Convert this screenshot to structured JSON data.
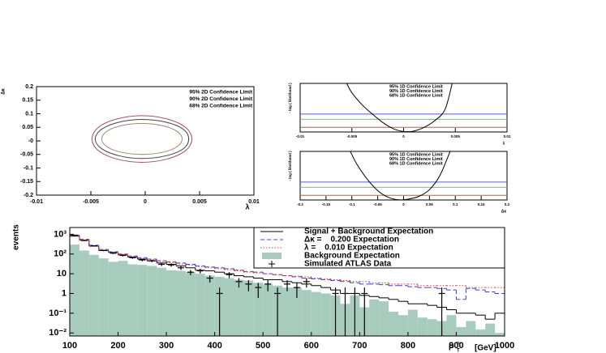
{
  "chart_data": [
    {
      "type": "contour",
      "xlabel": "λ",
      "ylabel": "Δκ",
      "xlim": [
        -0.01,
        0.01
      ],
      "ylim": [
        -0.2,
        0.2
      ],
      "xticks": [
        -0.01,
        -0.005,
        0,
        0.005,
        0.01
      ],
      "yticks": [
        -0.2,
        -0.15,
        -0.1,
        -0.05,
        {
          "value": 0,
          "label": "-0"
        },
        0.05,
        0.1,
        0.15,
        0.2
      ],
      "series": [
        {
          "name": "95% 2D Confidence Limit",
          "color": "#a85060",
          "x": [
            0.0043,
            0.0037,
            0.002,
            -0.0003,
            -0.0026,
            -0.0043,
            -0.0049,
            -0.0043,
            -0.0026,
            -0.0003,
            0.002,
            0.0037
          ],
          "values": [
            0.007,
            0.05,
            0.081,
            0.093,
            0.081,
            0.05,
            0.007,
            -0.036,
            -0.067,
            -0.079,
            -0.067,
            -0.036
          ]
        },
        {
          "name": "90% 2D Confidence Limit",
          "color": "#404058",
          "x": [
            0.004,
            0.0035,
            0.0019,
            -0.0003,
            -0.0024,
            -0.004,
            -0.0046,
            -0.004,
            -0.0024,
            -0.0003,
            0.0019,
            0.0035
          ],
          "values": [
            0.007,
            0.043,
            0.069,
            0.079,
            0.069,
            0.043,
            0.007,
            -0.029,
            -0.055,
            -0.065,
            -0.055,
            -0.029
          ]
        },
        {
          "name": "68% 2D Confidence Limit",
          "color": "#a08868",
          "x": [
            0.0034,
            0.0029,
            0.0016,
            -0.0003,
            -0.0022,
            -0.0035,
            -0.004,
            -0.0035,
            -0.0022,
            -0.0003,
            0.0016,
            0.0029
          ],
          "values": [
            0.007,
            0.036,
            0.056,
            0.064,
            0.056,
            0.036,
            0.007,
            -0.022,
            -0.042,
            -0.05,
            -0.042,
            -0.022
          ]
        }
      ]
    },
    {
      "type": "likelihood",
      "xlabel": "λ",
      "ylabel": "- log ( likelihood )",
      "xlim": [
        -0.01,
        0.01
      ],
      "ylim": [
        0,
        5.2
      ],
      "xticks": [
        -0.01,
        -0.005,
        0,
        0.005,
        0.01
      ],
      "curve": {
        "color": "#000000",
        "x": [
          -0.0055,
          -0.005,
          -0.004,
          -0.003,
          -0.002,
          -0.001,
          0,
          0.001,
          0.002,
          0.003,
          0.004,
          0.0047
        ],
        "values": [
          5.2,
          4.2,
          2.9,
          1.9,
          1.0,
          0.35,
          0.05,
          0.1,
          0.5,
          1.2,
          2.4,
          5.2
        ]
      },
      "levels": [
        {
          "name": "95% 1D Confidence Limit",
          "value": 1.92,
          "color": "#5a5ad8"
        },
        {
          "name": "90% 1D Confidence Limit",
          "value": 1.35,
          "color": "#60d060"
        },
        {
          "name": "68% 1D Confidence Limit",
          "value": 0.5,
          "color": "#d05050"
        }
      ]
    },
    {
      "type": "likelihood",
      "xlabel": "Δκ",
      "ylabel": "- log ( likelihood )",
      "xlim": [
        -0.2,
        0.2
      ],
      "ylim": [
        0,
        5.2
      ],
      "xticks": [
        -0.2,
        -0.15,
        -0.1,
        -0.05,
        0,
        0.05,
        0.1,
        0.15,
        0.2
      ],
      "curve": {
        "color": "#000000",
        "x": [
          -0.103,
          -0.09,
          -0.07,
          -0.05,
          -0.03,
          -0.01,
          0.01,
          0.03,
          0.05,
          0.07,
          0.09
        ],
        "values": [
          5.2,
          3.8,
          2.2,
          1.0,
          0.3,
          0.02,
          0.1,
          0.4,
          1.1,
          2.6,
          5.2
        ]
      },
      "levels": [
        {
          "name": "95% 1D Confidence Limit",
          "value": 1.92,
          "color": "#5a5ad8"
        },
        {
          "name": "90% 1D Confidence Limit",
          "value": 1.35,
          "color": "#60d060"
        },
        {
          "name": "68% 1D Confidence Limit",
          "value": 0.5,
          "color": "#d05050"
        }
      ]
    },
    {
      "type": "histogram",
      "ylabel": "events",
      "xlabel": {
        "base": "P",
        "sup": "γ",
        "sub": "T",
        "unit": "[GeV]"
      },
      "xlim": [
        100,
        1000
      ],
      "ylim": [
        0.007,
        2200
      ],
      "log_y": true,
      "xticks": [
        100,
        200,
        300,
        400,
        500,
        600,
        700,
        800,
        900,
        1000
      ],
      "yticks": [
        {
          "value": 0.01,
          "label": "10⁻²"
        },
        {
          "value": 0.1,
          "label": "10⁻¹"
        },
        1,
        10,
        {
          "value": 100,
          "label": "10²"
        },
        {
          "value": 1000,
          "label": "10³"
        }
      ],
      "bins": [
        100,
        120,
        140,
        160,
        180,
        200,
        220,
        240,
        260,
        280,
        300,
        320,
        340,
        360,
        380,
        400,
        420,
        440,
        460,
        480,
        500,
        520,
        540,
        560,
        580,
        600,
        620,
        640,
        660,
        680,
        700,
        720,
        740,
        760,
        780,
        800,
        820,
        840,
        860,
        880,
        900,
        920,
        940,
        960,
        980,
        1000
      ],
      "series": [
        {
          "name": "Signal + Background Expectation",
          "style": "solid",
          "color": "#000000",
          "values": [
            800,
            500,
            250,
            150,
            120,
            90,
            70,
            55,
            45,
            35,
            30,
            25,
            20,
            15,
            14,
            12,
            10,
            8,
            7,
            6,
            5,
            5,
            4,
            3.5,
            3,
            2.5,
            2,
            1.5,
            1,
            1,
            0.8,
            0.7,
            0.6,
            0.5,
            0.4,
            0.3,
            0.3,
            0.25,
            0.2,
            0.15,
            0.1,
            0.1,
            0.08,
            0.05,
            0.1
          ]
        },
        {
          "name": "Δκ =    0.200 Expectation",
          "style": "dashed",
          "color": "#4040d0",
          "values": [
            900,
            550,
            280,
            170,
            130,
            100,
            80,
            65,
            55,
            45,
            40,
            35,
            30,
            25,
            22,
            20,
            18,
            15,
            13,
            12,
            10,
            9,
            8,
            7,
            6,
            5.5,
            5,
            4.5,
            4,
            3.5,
            3,
            3,
            2.8,
            2.5,
            2.5,
            2.2,
            2,
            2,
            1.8,
            1.5,
            0.5,
            1.8,
            1.5,
            1.2,
            1
          ]
        },
        {
          "name": "λ =    0.010 Expectation",
          "style": "dotted",
          "color": "#e04040",
          "values": [
            850,
            520,
            260,
            160,
            125,
            95,
            75,
            60,
            50,
            42,
            36,
            31,
            27,
            23,
            20,
            18,
            16,
            14,
            12,
            11,
            10,
            9,
            8,
            7.5,
            7,
            6,
            5.5,
            5,
            4.5,
            4,
            4,
            3.5,
            3.5,
            3,
            3,
            3,
            2.5,
            2.5,
            2.5,
            2.5,
            2.5,
            2,
            2,
            2,
            2
          ]
        },
        {
          "name": "Background Expectation",
          "style": "filled",
          "color": "#a7cbbd",
          "values": [
            300,
            150,
            90,
            60,
            40,
            45,
            30,
            28,
            25,
            20,
            15,
            14,
            12,
            10,
            8,
            7,
            6,
            5,
            4.5,
            3.5,
            3,
            2.5,
            2,
            2,
            1.5,
            1.2,
            1,
            0.8,
            0.3,
            0.8,
            0.2,
            0.5,
            0.4,
            0.12,
            0.08,
            0.15,
            0.06,
            0.05,
            0.04,
            0.08,
            0.02,
            0.04,
            0.015,
            0.03,
            0.01
          ]
        }
      ],
      "data": {
        "name": "Simulated ATLAS Data",
        "color": "#000000",
        "x": [
          110,
          130,
          150,
          170,
          190,
          210,
          230,
          250,
          270,
          290,
          310,
          330,
          350,
          370,
          390,
          410,
          430,
          450,
          470,
          490,
          510,
          530,
          550,
          570,
          590,
          650,
          670,
          690,
          710,
          870
        ],
        "values": [
          900,
          480,
          260,
          150,
          110,
          85,
          65,
          50,
          45,
          30,
          28,
          20,
          12,
          14,
          6,
          1,
          9,
          4,
          3,
          2,
          3,
          1,
          3,
          2,
          4,
          1,
          1,
          1,
          1,
          1
        ],
        "errors": [
          30,
          22,
          16,
          12,
          10.5,
          9.2,
          8.1,
          7.1,
          6.7,
          5.5,
          5.3,
          4.5,
          3.5,
          3.7,
          2.4,
          1,
          3,
          2,
          1.7,
          1.4,
          1.7,
          1,
          1.7,
          1.4,
          2,
          1,
          1,
          1,
          1,
          1
        ]
      }
    }
  ]
}
